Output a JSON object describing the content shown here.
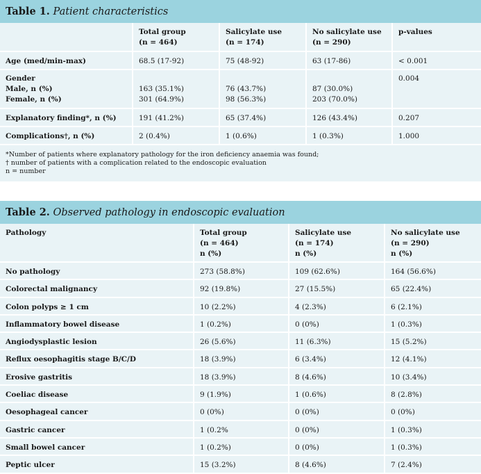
{
  "table1": {
    "number": "Table 1.",
    "caption": "Patient characteristics",
    "headers": [
      "",
      "Total group\n(n = 464)",
      "Salicylate use\n(n = 174)",
      "No salicylate use\n(n = 290)",
      "p-values"
    ],
    "header_lines": [
      [
        "Total group",
        "(n = 464)"
      ],
      [
        "Salicylate use",
        "(n = 174)"
      ],
      [
        "No salicylate use",
        "(n = 290)"
      ],
      [
        "p-values"
      ]
    ],
    "rows": [
      {
        "label": "Age (med/min-max)",
        "total": "68.5 (17-92)",
        "sal": "75 (48-92)",
        "nosal": "63 (17-86)",
        "p": "< 0.001"
      },
      {
        "label": "Gender",
        "sub": [
          {
            "label": "Male, n (%)",
            "total": "163 (35.1%)",
            "sal": "76 (43.7%)",
            "nosal": "87 (30.0%)"
          },
          {
            "label": "Female, n (%)",
            "total": "301 (64.9%)",
            "sal": "98 (56.3%)",
            "nosal": "203 (70.0%)"
          }
        ],
        "p": "0.004"
      },
      {
        "label": "Explanatory finding*, n (%)",
        "total": "191 (41.2%)",
        "sal": "65 (37.4%)",
        "nosal": "126 (43.4%)",
        "p": "0.207"
      },
      {
        "label": "Complications†, n (%)",
        "total": "2 (0.4%)",
        "sal": "1 (0.6%)",
        "nosal": "1 (0.3%)",
        "p": "1.000"
      }
    ],
    "notes": [
      "*Number of patients where explanatory pathology for the iron deficiency anaemia was found;",
      "† number of patients with a complication related to the endoscopic evaluation",
      "n = number"
    ]
  },
  "table2": {
    "number": "Table 2.",
    "caption": "Observed pathology in endoscopic evaluation",
    "header_lines": [
      [
        "Pathology"
      ],
      [
        "Total group",
        "(n = 464)",
        "n (%)"
      ],
      [
        "Salicylate use",
        "(n = 174)",
        "n (%)"
      ],
      [
        "No salicylate use",
        "(n = 290)",
        "n (%)"
      ]
    ],
    "rows": [
      [
        "No pathology",
        "273 (58.8%)",
        "109 (62.6%)",
        "164 (56.6%)"
      ],
      [
        "Colorectal malignancy",
        "92 (19.8%)",
        "27 (15.5%)",
        "65 (22.4%)"
      ],
      [
        "Colon polyps ≥ 1 cm",
        "10 (2.2%)",
        "4 (2.3%)",
        "6 (2.1%)"
      ],
      [
        "Inflammatory bowel disease",
        "1 (0.2%)",
        "0 (0%)",
        "1 (0.3%)"
      ],
      [
        "Angiodysplastic lesion",
        "26 (5.6%)",
        "11 (6.3%)",
        "15 (5.2%)"
      ],
      [
        "Reflux oesophagitis stage B/C/D",
        "18 (3.9%)",
        "6 (3.4%)",
        "12 (4.1%)"
      ],
      [
        "Erosive gastritis",
        "18 (3.9%)",
        "8 (4.6%)",
        "10 (3.4%)"
      ],
      [
        "Coeliac disease",
        "9 (1.9%)",
        "1 (0.6%)",
        "8 (2.8%)"
      ],
      [
        "Oesophageal cancer",
        "0 (0%)",
        "0 (0%)",
        "0 (0%)"
      ],
      [
        "Gastric cancer",
        "1 (0.2%",
        "0 (0%)",
        "1 (0.3%)"
      ],
      [
        "Small bowel cancer",
        "1 (0.2%)",
        "0 (0%)",
        "1 (0.3%)"
      ],
      [
        "Peptic ulcer",
        "15 (3.2%)",
        "8 (4.6%)",
        "7 (2.4%)"
      ]
    ]
  },
  "colors": {
    "header_band": "#9bd3df",
    "table_bg": "#e9f3f6",
    "rule": "#ffffff"
  }
}
